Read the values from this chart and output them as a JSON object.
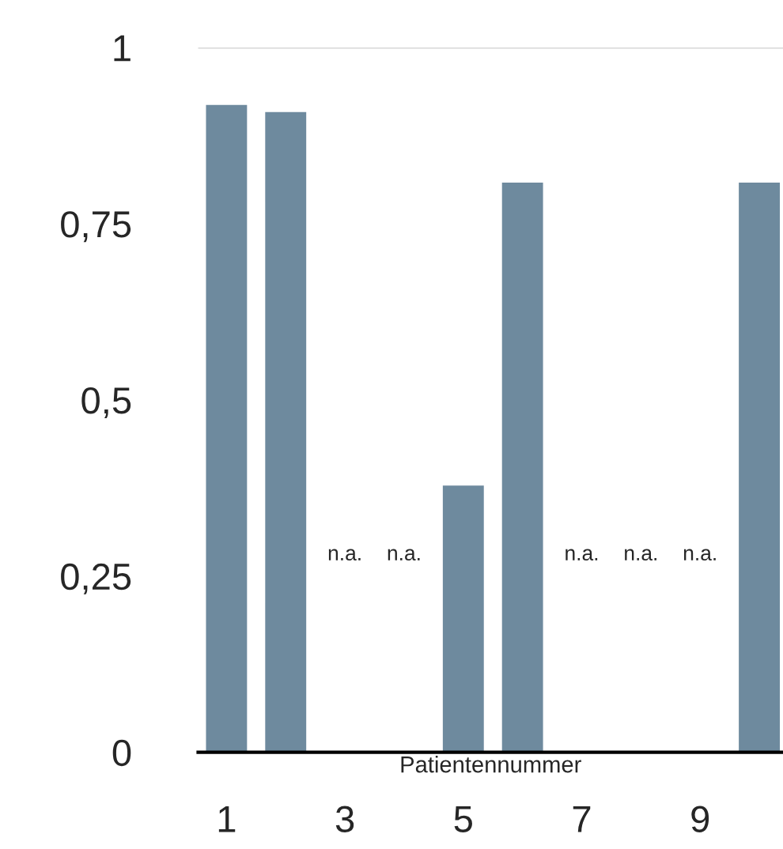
{
  "chart_data": {
    "type": "bar",
    "xlabel": "Patientennummer",
    "categories": [
      "1",
      null,
      "3",
      null,
      "5",
      null,
      "7",
      null,
      "9",
      null
    ],
    "values": [
      0.92,
      0.91,
      null,
      null,
      0.38,
      0.81,
      null,
      null,
      null,
      0.81
    ],
    "value_labels": [
      null,
      null,
      "n.a.",
      "n.a.",
      null,
      null,
      "n.a.",
      "n.a.",
      "n.a.",
      null
    ],
    "color": "#6e8a9e",
    "ylim": [
      0,
      1
    ],
    "yticks": [
      0,
      {
        "value": 0.25,
        "label": "0,25"
      },
      {
        "value": 0.5,
        "label": "0,5"
      },
      {
        "value": 0.75,
        "label": "0,75"
      },
      1
    ],
    "ref_lines": [
      {
        "axis": "y",
        "value": 1,
        "color": "#d0d0d0"
      }
    ],
    "grid": false
  }
}
